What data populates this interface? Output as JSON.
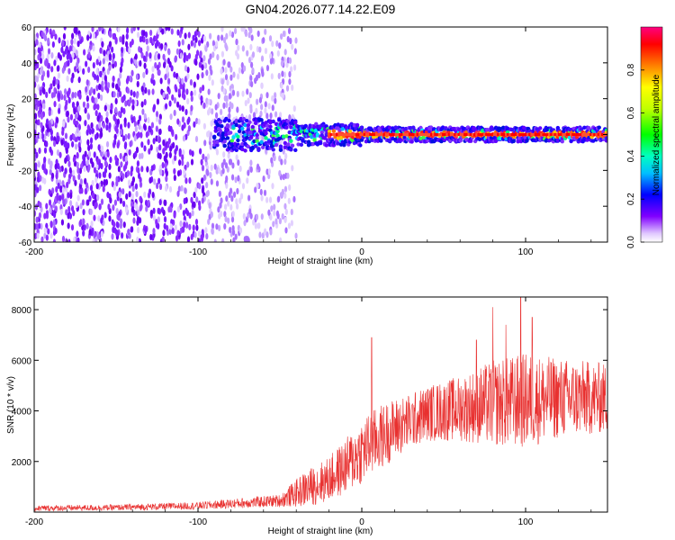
{
  "title": "GN04.2026.077.14.22.E09",
  "chart_data": [
    {
      "type": "heatmap",
      "xlabel": "Height of straight line (km)",
      "ylabel": "Frequency (Hz)",
      "xlim": [
        -200,
        150
      ],
      "ylim": [
        -60,
        60
      ],
      "xticks": [
        -200,
        -100,
        0,
        100
      ],
      "yticks": [
        -60,
        -40,
        -20,
        0,
        20,
        40,
        60
      ],
      "colorbar": {
        "label": "Normalized spectral amplitude",
        "range": [
          0,
          1
        ],
        "ticks": [
          0.0,
          0.2,
          0.4,
          0.6,
          0.8
        ],
        "colormap": [
          "#ffffff",
          "#7f00ff",
          "#0000ff",
          "#00ffff",
          "#00ff00",
          "#ffff00",
          "#ff7f00",
          "#ff0000",
          "#ff0080"
        ]
      },
      "features": {
        "scatter_noise_x_range": [
          -200,
          -40
        ],
        "signal_band_center_hz": 0,
        "signal_band_start_km": -90,
        "signal_peak_start_km": -20
      }
    },
    {
      "type": "line",
      "xlabel": "Height of straight line (km)",
      "ylabel": "SNR (10 * v/v)",
      "xlim": [
        -200,
        150
      ],
      "ylim": [
        0,
        8500
      ],
      "xticks": [
        -200,
        -100,
        0,
        100
      ],
      "yticks": [
        2000,
        4000,
        6000,
        8000
      ],
      "color": "#e8302f",
      "envelope": {
        "x": [
          -200,
          -150,
          -100,
          -50,
          -35,
          -20,
          -10,
          0,
          10,
          20,
          30,
          40,
          60,
          80,
          100,
          120,
          150
        ],
        "mean": [
          150,
          180,
          250,
          450,
          900,
          1300,
          1800,
          2400,
          2900,
          3300,
          3600,
          3900,
          4100,
          4300,
          4400,
          4500,
          4500
        ],
        "amplitude": [
          120,
          120,
          150,
          250,
          700,
          900,
          1100,
          1300,
          1300,
          1200,
          1100,
          1100,
          1300,
          1700,
          1900,
          1600,
          1400
        ]
      },
      "spikes": [
        {
          "x": 6,
          "y": 6900
        },
        {
          "x": 80,
          "y": 8100
        },
        {
          "x": 88,
          "y": 7400
        },
        {
          "x": 97,
          "y": 8500
        },
        {
          "x": 104,
          "y": 7700
        },
        {
          "x": 70,
          "y": 6800
        }
      ]
    }
  ]
}
